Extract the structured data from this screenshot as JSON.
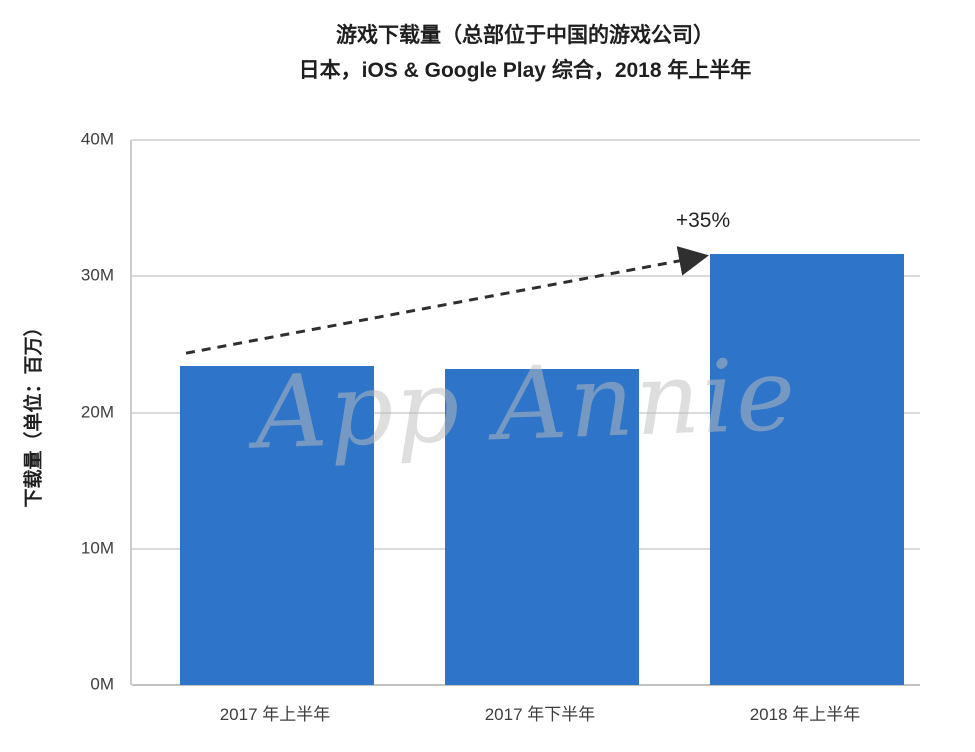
{
  "title": {
    "line1": "游戏下载量（总部位于中国的游戏公司）",
    "line2": "日本，iOS & Google Play 综合，2018 年上半年"
  },
  "watermark": "App Annie",
  "chart_data": {
    "type": "bar",
    "title": "游戏下载量（总部位于中国的游戏公司）",
    "subtitle": "日本，iOS & Google Play 综合，2018 年上半年",
    "categories": [
      "2017 年上半年",
      "2017 年下半年",
      "2018 年上半年"
    ],
    "values": [
      23.4,
      23.2,
      31.6
    ],
    "xlabel": "",
    "ylabel": "下载量（单位：百万）",
    "ylim": [
      0,
      40
    ],
    "yticks": [
      0,
      10,
      20,
      30,
      40
    ],
    "ytick_labels": [
      "0M",
      "10M",
      "20M",
      "30M",
      "40M"
    ],
    "grid": true,
    "legend": false,
    "bar_color": "#2e74c8",
    "annotation": {
      "label": "+35%",
      "from_bar": 0,
      "to_bar": 2
    }
  },
  "colors": {
    "bar": "#2e74c8",
    "gridline": "#dadada",
    "axis_text": "#3e3e3e",
    "title_text": "#1f1f1f",
    "arrow": "#2f2f2f",
    "background": "#ffffff"
  }
}
